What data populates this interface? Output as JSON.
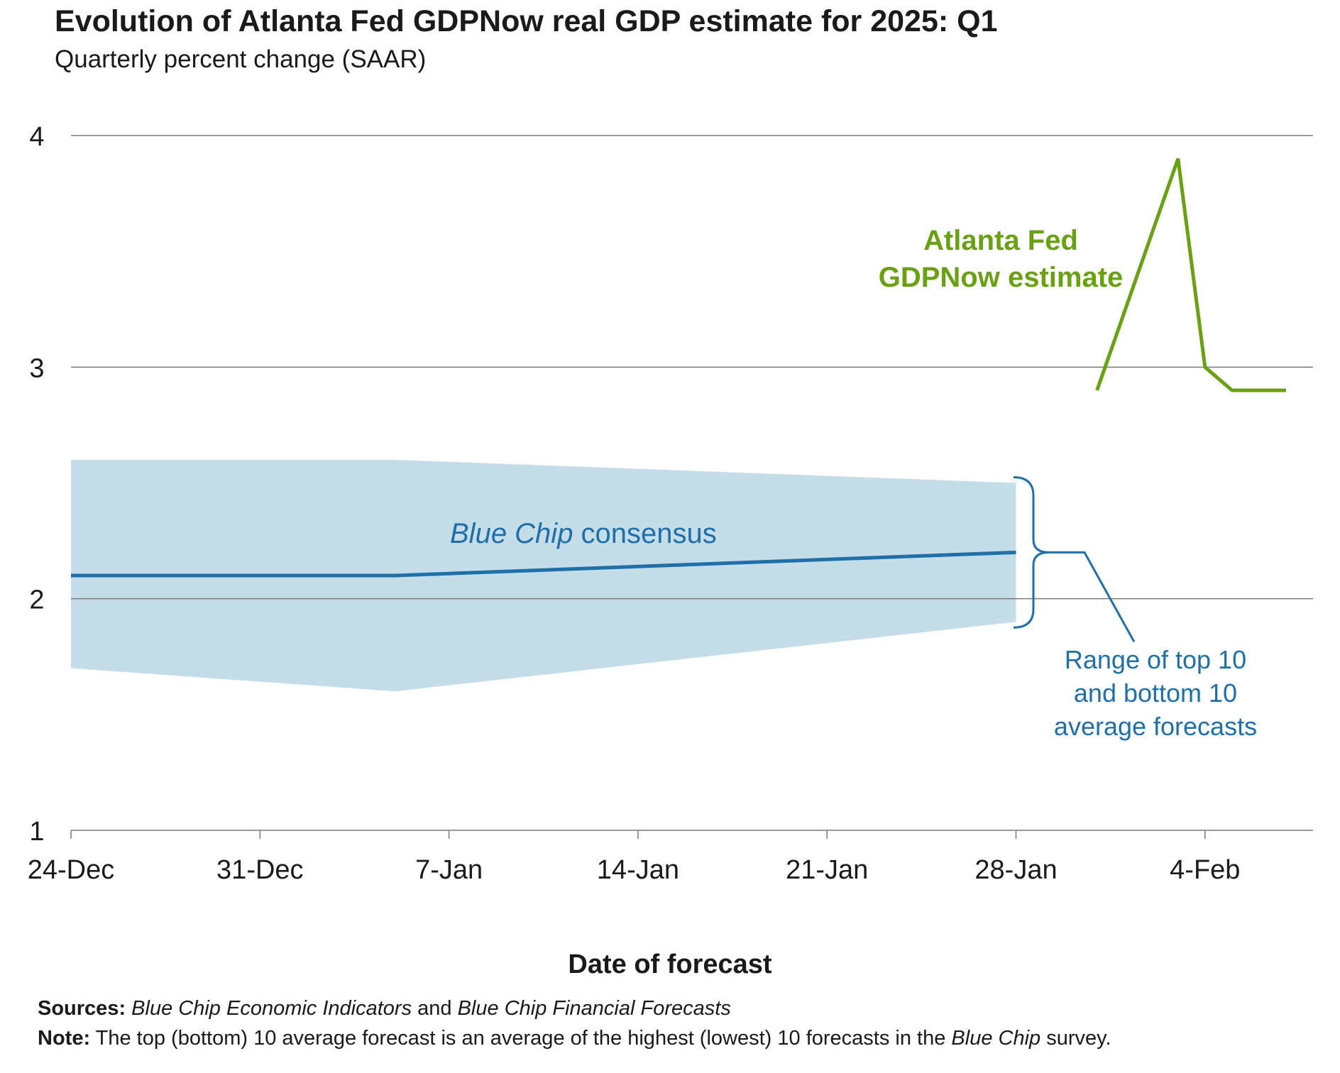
{
  "header": {
    "title": "Evolution of Atlanta Fed GDPNow real GDP estimate for 2025: Q1",
    "subtitle": "Quarterly percent change (SAAR)"
  },
  "footer": {
    "sources_label": "Sources:",
    "sources_text_1": "Blue Chip Economic Indicators",
    "sources_and": " and ",
    "sources_text_2": "Blue Chip Financial Forecasts",
    "note_label": "Note:",
    "note_text_1": " The top (bottom) 10 average forecast is an average of the highest (lowest) 10 forecasts in the ",
    "note_text_italic": "Blue Chip",
    "note_text_2": " survey."
  },
  "colors": {
    "gdpnow": "#6aa014",
    "bluechip": "#1f6faa",
    "band": "#c5dce9",
    "grid": "#7a7a7a"
  },
  "chart_data": {
    "type": "line",
    "title": "Evolution of Atlanta Fed GDPNow real GDP estimate for 2025: Q1",
    "subtitle": "Quarterly percent change (SAAR)",
    "xlabel": "Date of forecast",
    "ylabel": "",
    "ylim": [
      1,
      4
    ],
    "xlim": [
      "2024-12-24",
      "2025-02-08"
    ],
    "yticks": [
      1,
      2,
      3,
      4
    ],
    "xticks": [
      {
        "date": "2024-12-24",
        "label": "24-Dec"
      },
      {
        "date": "2024-12-31",
        "label": "31-Dec"
      },
      {
        "date": "2025-01-07",
        "label": "7-Jan"
      },
      {
        "date": "2025-01-14",
        "label": "14-Jan"
      },
      {
        "date": "2025-01-21",
        "label": "21-Jan"
      },
      {
        "date": "2025-01-28",
        "label": "28-Jan"
      },
      {
        "date": "2025-02-04",
        "label": "4-Feb"
      }
    ],
    "grid": "horizontal",
    "series": [
      {
        "name": "Atlanta Fed GDPNow estimate",
        "label_lines": [
          "Atlanta Fed",
          "GDPNow estimate"
        ],
        "points": [
          {
            "x": "2025-01-31",
            "y": 2.9
          },
          {
            "x": "2025-02-03",
            "y": 3.9
          },
          {
            "x": "2025-02-04",
            "y": 3.0
          },
          {
            "x": "2025-02-05",
            "y": 2.9
          },
          {
            "x": "2025-02-07",
            "y": 2.9
          }
        ]
      },
      {
        "name": "Blue Chip consensus",
        "label_italic": "Blue Chip",
        "label_rest": " consensus",
        "points": [
          {
            "x": "2024-12-24",
            "y": 2.1
          },
          {
            "x": "2025-01-05",
            "y": 2.1
          },
          {
            "x": "2025-01-28",
            "y": 2.2
          }
        ]
      }
    ],
    "band": {
      "name": "Range of top 10 and bottom 10 average forecasts",
      "label_lines": [
        "Range of top 10",
        "and bottom 10",
        "average forecasts"
      ],
      "points": [
        {
          "x": "2024-12-24",
          "low": 1.7,
          "high": 2.6
        },
        {
          "x": "2025-01-05",
          "low": 1.6,
          "high": 2.6
        },
        {
          "x": "2025-01-28",
          "low": 1.9,
          "high": 2.5
        }
      ]
    }
  }
}
